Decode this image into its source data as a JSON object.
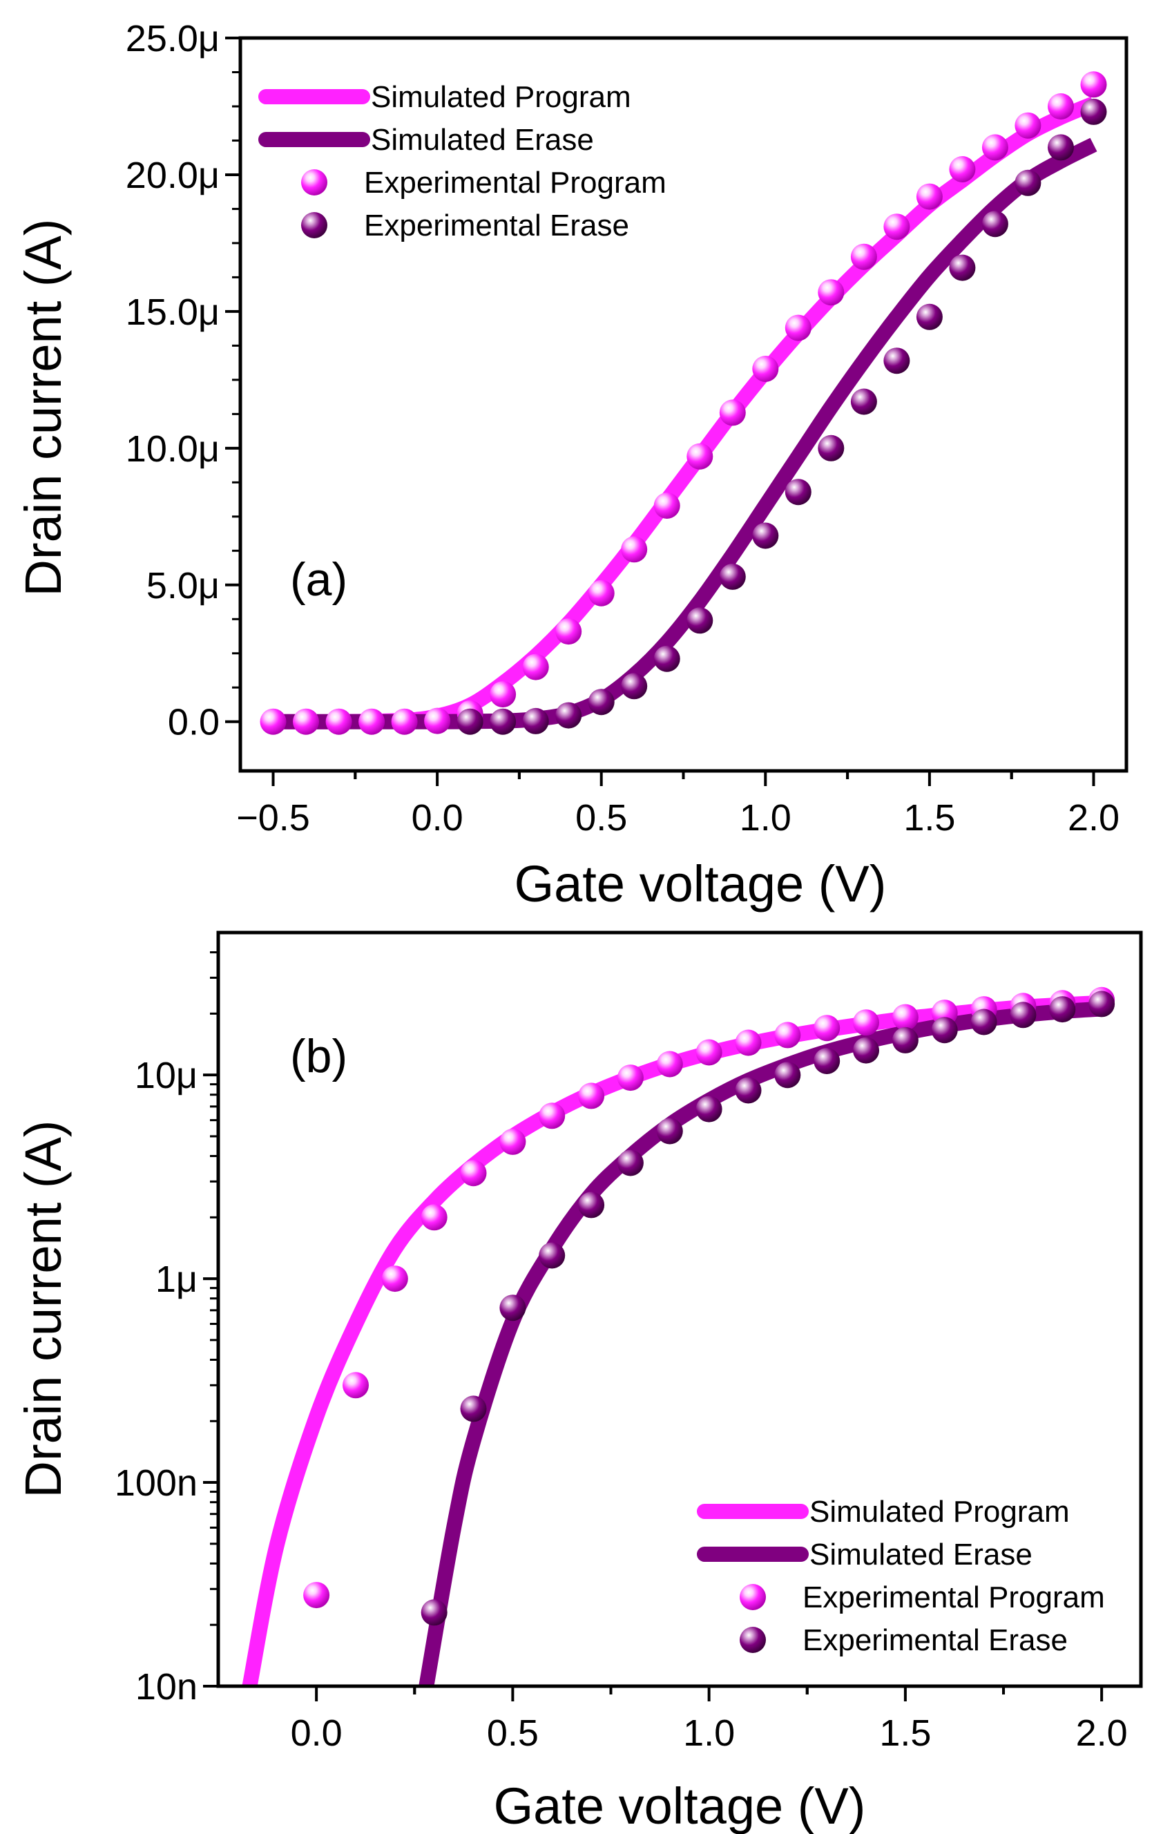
{
  "colors": {
    "program": "#ff22ff",
    "erase": "#800080",
    "axis": "#000000"
  },
  "chart_data": [
    {
      "panel": "(a)",
      "type": "line+scatter",
      "yscale": "linear",
      "xlabel": "Gate voltage (V)",
      "ylabel": "Drain current (A)",
      "xlim": [
        -0.6,
        2.1
      ],
      "ylim": [
        -1.8e-06,
        2.5e-05
      ],
      "xticks": [
        -0.5,
        0.0,
        0.5,
        1.0,
        1.5,
        2.0
      ],
      "xtick_labels": [
        "−0.5",
        "0.0",
        "0.5",
        "1.0",
        "1.5",
        "2.0"
      ],
      "yticks": [
        0,
        5e-06,
        1e-05,
        1.5e-05,
        2e-05,
        2.5e-05
      ],
      "ytick_labels": [
        "0.0",
        "5.0μ",
        "10.0μ",
        "15.0μ",
        "20.0μ",
        "25.0μ"
      ],
      "legend_position": "top-left",
      "legend": [
        {
          "label": "Simulated Program",
          "kind": "line",
          "series": "program"
        },
        {
          "label": "Simulated Erase",
          "kind": "line",
          "series": "erase"
        },
        {
          "label": "Experimental Program",
          "kind": "marker",
          "series": "program"
        },
        {
          "label": "Experimental Erase",
          "kind": "marker",
          "series": "erase"
        }
      ],
      "series": [
        {
          "name": "Simulated Program",
          "kind": "line",
          "color_key": "program",
          "x": [
            -0.5,
            -0.3,
            -0.1,
            0.0,
            0.1,
            0.2,
            0.3,
            0.4,
            0.5,
            0.6,
            0.7,
            0.8,
            0.9,
            1.0,
            1.1,
            1.2,
            1.3,
            1.4,
            1.5,
            1.6,
            1.7,
            1.8,
            1.9,
            2.0
          ],
          "y": [
            0,
            0,
            5e-08,
            2e-07,
            6e-07,
            1.4e-06,
            2.4e-06,
            3.6e-06,
            5e-06,
            6.5e-06,
            8.1e-06,
            9.7e-06,
            1.13e-05,
            1.28e-05,
            1.42e-05,
            1.55e-05,
            1.67e-05,
            1.78e-05,
            1.89e-05,
            1.98e-05,
            2.07e-05,
            2.15e-05,
            2.21e-05,
            2.26e-05
          ]
        },
        {
          "name": "Simulated Erase",
          "kind": "line",
          "color_key": "erase",
          "x": [
            -0.5,
            0.0,
            0.2,
            0.3,
            0.4,
            0.5,
            0.6,
            0.7,
            0.8,
            0.9,
            1.0,
            1.1,
            1.2,
            1.3,
            1.4,
            1.5,
            1.6,
            1.7,
            1.8,
            1.9,
            2.0
          ],
          "y": [
            0,
            0,
            3e-08,
            1e-07,
            3e-07,
            8e-07,
            1.7e-06,
            2.9e-06,
            4.4e-06,
            6.1e-06,
            7.9e-06,
            9.7e-06,
            1.15e-05,
            1.32e-05,
            1.48e-05,
            1.63e-05,
            1.76e-05,
            1.88e-05,
            1.98e-05,
            2.05e-05,
            2.11e-05
          ]
        },
        {
          "name": "Experimental Program",
          "kind": "marker",
          "color_key": "program",
          "x": [
            -0.5,
            -0.4,
            -0.3,
            -0.2,
            -0.1,
            0.0,
            0.1,
            0.2,
            0.3,
            0.4,
            0.5,
            0.6,
            0.7,
            0.8,
            0.9,
            1.0,
            1.1,
            1.2,
            1.3,
            1.4,
            1.5,
            1.6,
            1.7,
            1.8,
            1.9,
            2.0
          ],
          "y": [
            0,
            0,
            0,
            0,
            0,
            3e-08,
            3e-07,
            1e-06,
            2e-06,
            3.3e-06,
            4.7e-06,
            6.3e-06,
            7.9e-06,
            9.7e-06,
            1.13e-05,
            1.29e-05,
            1.44e-05,
            1.57e-05,
            1.7e-05,
            1.81e-05,
            1.92e-05,
            2.02e-05,
            2.1e-05,
            2.18e-05,
            2.25e-05,
            2.33e-05
          ]
        },
        {
          "name": "Experimental Erase",
          "kind": "marker",
          "color_key": "erase",
          "x": [
            0.1,
            0.2,
            0.3,
            0.4,
            0.5,
            0.6,
            0.7,
            0.8,
            0.9,
            1.0,
            1.1,
            1.2,
            1.3,
            1.4,
            1.5,
            1.6,
            1.7,
            1.8,
            1.9,
            2.0
          ],
          "y": [
            0,
            0,
            2e-08,
            2.3e-07,
            7.2e-07,
            1.3e-06,
            2.3e-06,
            3.7e-06,
            5.3e-06,
            6.8e-06,
            8.4e-06,
            1e-05,
            1.17e-05,
            1.32e-05,
            1.48e-05,
            1.66e-05,
            1.82e-05,
            1.97e-05,
            2.1e-05,
            2.23e-05
          ]
        }
      ]
    },
    {
      "panel": "(b)",
      "type": "line+scatter",
      "yscale": "log",
      "xlabel": "Gate voltage (V)",
      "ylabel": "Drain current (A)",
      "xlim": [
        -0.25,
        2.1
      ],
      "ylim": [
        1e-08,
        5e-05
      ],
      "xticks": [
        0.0,
        0.5,
        1.0,
        1.5,
        2.0
      ],
      "xtick_labels": [
        "0.0",
        "0.5",
        "1.0",
        "1.5",
        "2.0"
      ],
      "yticks": [
        1e-08,
        1e-07,
        1e-06,
        1e-05
      ],
      "ytick_labels": [
        "10n",
        "100n",
        "1μ",
        "10μ"
      ],
      "legend_position": "bottom-right",
      "legend": [
        {
          "label": "Simulated Program",
          "kind": "line",
          "series": "program"
        },
        {
          "label": "Simulated Erase",
          "kind": "line",
          "series": "erase"
        },
        {
          "label": "Experimental Program",
          "kind": "marker",
          "series": "program"
        },
        {
          "label": "Experimental Erase",
          "kind": "marker",
          "series": "erase"
        }
      ],
      "series": [
        {
          "name": "Simulated Program",
          "kind": "line",
          "color_key": "program",
          "x": [
            -0.17,
            -0.1,
            0.0,
            0.1,
            0.2,
            0.3,
            0.4,
            0.5,
            0.6,
            0.7,
            0.8,
            0.9,
            1.0,
            1.1,
            1.2,
            1.3,
            1.4,
            1.5,
            1.6,
            1.7,
            1.8,
            1.9,
            2.0
          ],
          "y": [
            1e-08,
            5e-08,
            2.1e-07,
            6e-07,
            1.4e-06,
            2.4e-06,
            3.6e-06,
            5e-06,
            6.5e-06,
            8.1e-06,
            9.7e-06,
            1.13e-05,
            1.28e-05,
            1.42e-05,
            1.55e-05,
            1.67e-05,
            1.78e-05,
            1.89e-05,
            1.98e-05,
            2.07e-05,
            2.15e-05,
            2.21e-05,
            2.26e-05
          ]
        },
        {
          "name": "Simulated Erase",
          "kind": "line",
          "color_key": "erase",
          "x": [
            0.28,
            0.35,
            0.4,
            0.5,
            0.6,
            0.7,
            0.8,
            0.9,
            1.0,
            1.1,
            1.2,
            1.3,
            1.4,
            1.5,
            1.6,
            1.7,
            1.8,
            1.9,
            2.0
          ],
          "y": [
            1e-08,
            6e-08,
            1.6e-07,
            6.2e-07,
            1.4e-06,
            2.6e-06,
            4e-06,
            5.7e-06,
            7.5e-06,
            9.4e-06,
            1.12e-05,
            1.3e-05,
            1.46e-05,
            1.61e-05,
            1.75e-05,
            1.87e-05,
            1.97e-05,
            2.05e-05,
            2.11e-05
          ]
        },
        {
          "name": "Experimental Program",
          "kind": "marker",
          "color_key": "program",
          "x": [
            0.0,
            0.1,
            0.2,
            0.3,
            0.4,
            0.5,
            0.6,
            0.7,
            0.8,
            0.9,
            1.0,
            1.1,
            1.2,
            1.3,
            1.4,
            1.5,
            1.6,
            1.7,
            1.8,
            1.9,
            2.0
          ],
          "y": [
            2.8e-08,
            3e-07,
            1e-06,
            2e-06,
            3.3e-06,
            4.7e-06,
            6.3e-06,
            7.9e-06,
            9.7e-06,
            1.13e-05,
            1.29e-05,
            1.44e-05,
            1.57e-05,
            1.7e-05,
            1.81e-05,
            1.92e-05,
            2.02e-05,
            2.1e-05,
            2.18e-05,
            2.25e-05,
            2.33e-05
          ]
        },
        {
          "name": "Experimental Erase",
          "kind": "marker",
          "color_key": "erase",
          "x": [
            0.3,
            0.4,
            0.5,
            0.6,
            0.7,
            0.8,
            0.9,
            1.0,
            1.1,
            1.2,
            1.3,
            1.4,
            1.5,
            1.6,
            1.7,
            1.8,
            1.9,
            2.0
          ],
          "y": [
            2.3e-08,
            2.3e-07,
            7.2e-07,
            1.3e-06,
            2.3e-06,
            3.7e-06,
            5.3e-06,
            6.8e-06,
            8.4e-06,
            1e-05,
            1.17e-05,
            1.32e-05,
            1.48e-05,
            1.66e-05,
            1.82e-05,
            1.97e-05,
            2.1e-05,
            2.23e-05
          ]
        }
      ]
    }
  ]
}
